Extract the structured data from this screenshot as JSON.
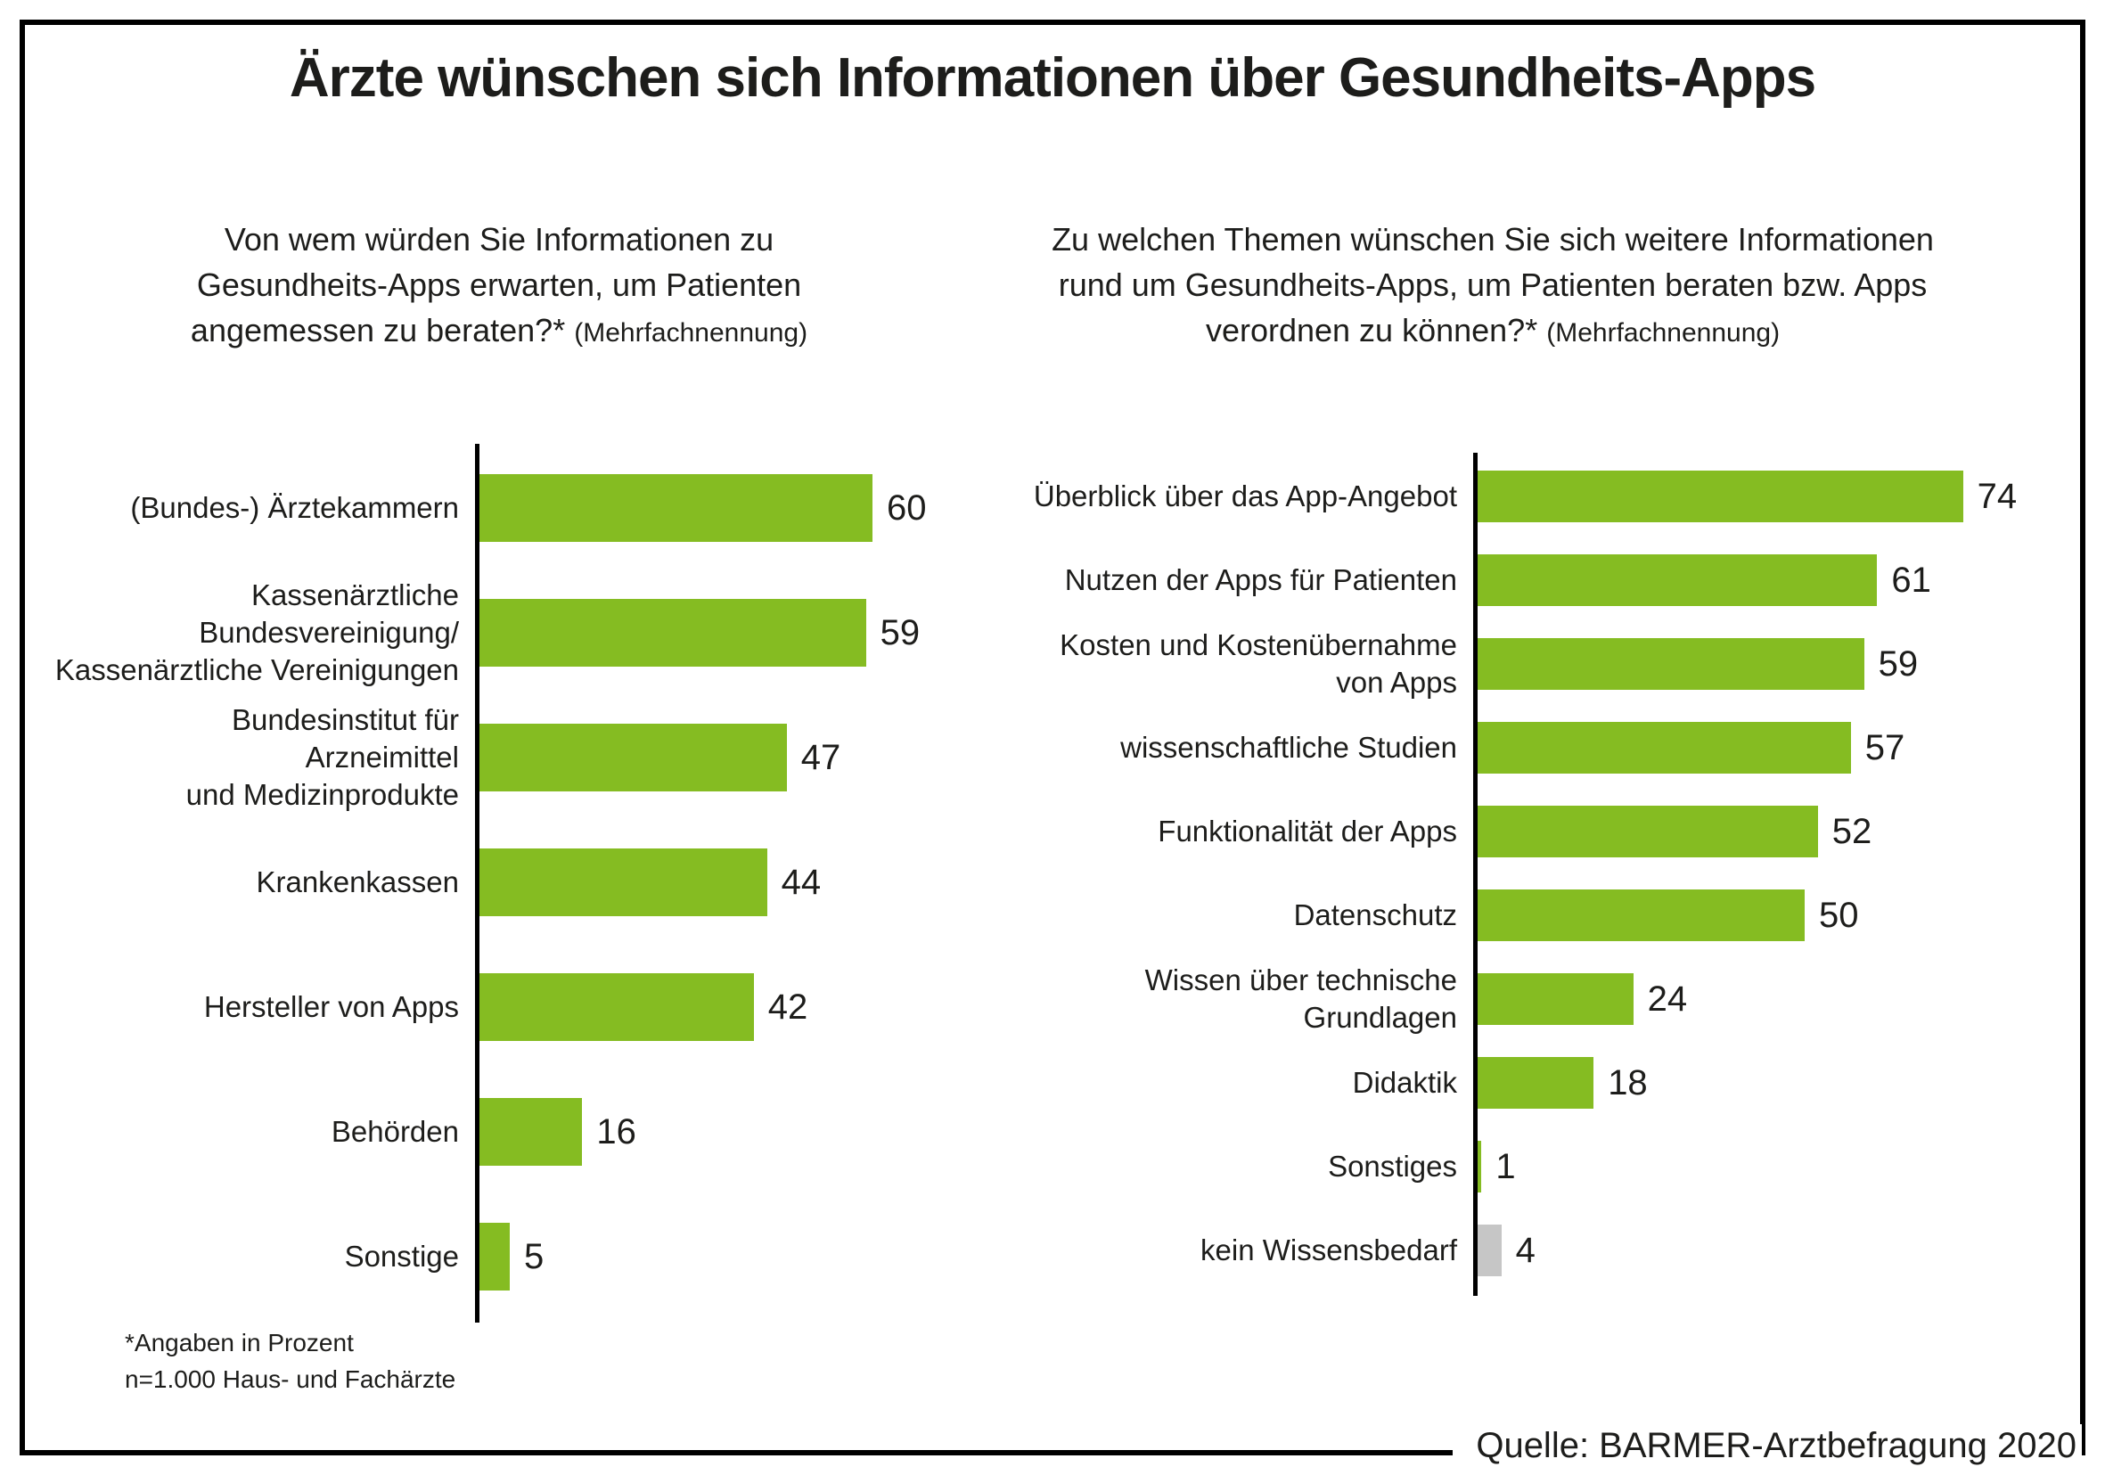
{
  "title": "Ärzte wünschen sich Informationen über Gesundheits-Apps",
  "footnotes": [
    "*Angaben in Prozent",
    "n=1.000 Haus- und Fachärzte"
  ],
  "source": "Quelle: BARMER-Arztbefragung 2020",
  "colors": {
    "bar_green": "#85BC22",
    "bar_grey": "#C6C6C6",
    "axis": "#000000",
    "text": "#1D1D1B"
  },
  "chart_data": [
    {
      "type": "bar",
      "orientation": "horizontal",
      "title": "Von wem würden Sie Informationen zu\nGesundheits-Apps erwarten, um Patienten\nangemessen zu beraten?*",
      "note": "(Mehrfachnennung)",
      "unit": "Prozent",
      "xlim": [
        0,
        80
      ],
      "grid": false,
      "legend": "none",
      "categories": [
        "(Bundes-) Ärztekammern",
        "Kassenärztliche\nBundesvereinigung/\nKassenärztliche Vereinigungen",
        "Bundesinstitut für\nArzneimittel\nund Medizinprodukte",
        "Krankenkassen",
        "Hersteller von Apps",
        "Behörden",
        "Sonstige"
      ],
      "values": [
        60,
        59,
        47,
        44,
        42,
        16,
        5
      ],
      "bar_colors": [
        "#85BC22",
        "#85BC22",
        "#85BC22",
        "#85BC22",
        "#85BC22",
        "#85BC22",
        "#85BC22"
      ]
    },
    {
      "type": "bar",
      "orientation": "horizontal",
      "title": "Zu welchen Themen wünschen Sie sich weitere Informationen\nrund um Gesundheits-Apps, um Patienten beraten bzw. Apps\nverordnen zu können?*",
      "note": "(Mehrfachnennung)",
      "unit": "Prozent",
      "xlim": [
        0,
        80
      ],
      "grid": false,
      "legend": "none",
      "categories": [
        "Überblick über das App-Angebot",
        "Nutzen der Apps für Patienten",
        "Kosten und Kostenübernahme\nvon Apps",
        "wissenschaftliche Studien",
        "Funktionalität der Apps",
        "Datenschutz",
        "Wissen über technische\nGrundlagen",
        "Didaktik",
        "Sonstiges",
        "kein Wissensbedarf"
      ],
      "values": [
        74,
        61,
        59,
        57,
        52,
        50,
        24,
        18,
        1,
        4
      ],
      "bar_colors": [
        "#85BC22",
        "#85BC22",
        "#85BC22",
        "#85BC22",
        "#85BC22",
        "#85BC22",
        "#85BC22",
        "#85BC22",
        "#85BC22",
        "#C6C6C6"
      ]
    }
  ]
}
